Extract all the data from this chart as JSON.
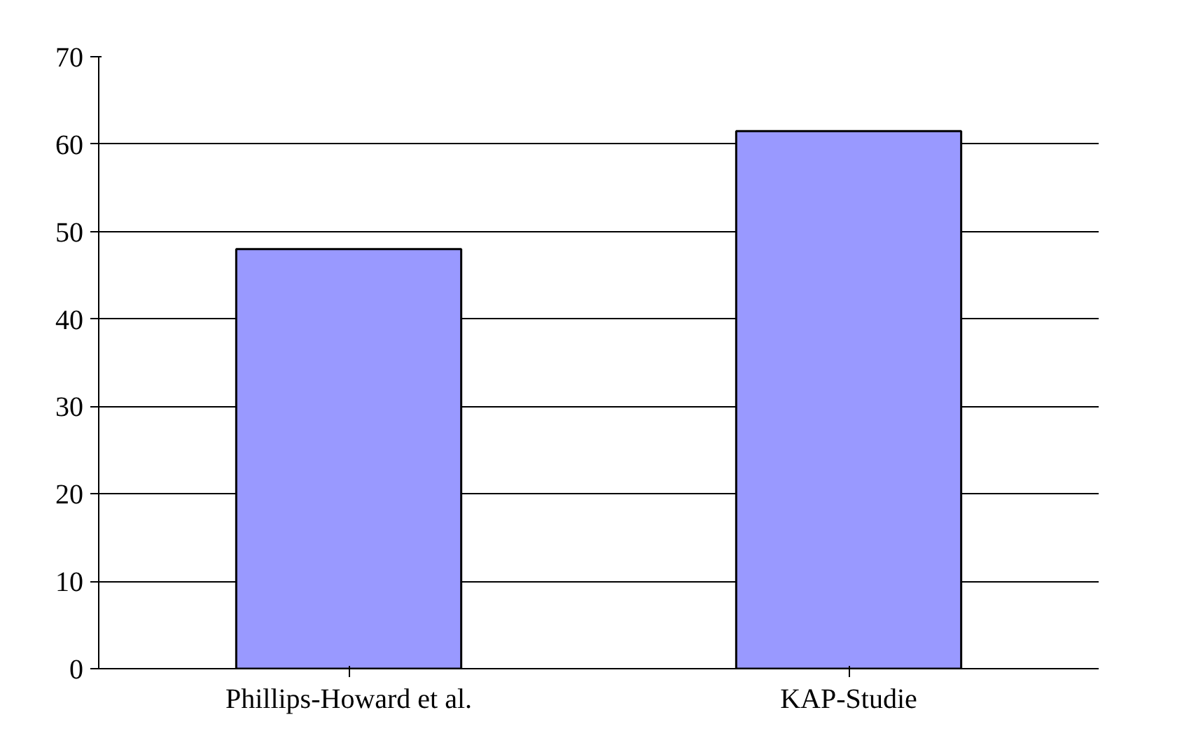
{
  "chart_data": {
    "type": "bar",
    "categories": [
      "Phillips-Howard et al.",
      "KAP-Studie"
    ],
    "values": [
      48,
      61.5
    ],
    "color": "#9999ff",
    "ylim": [
      0,
      70
    ],
    "yticks": [
      0,
      10,
      20,
      30,
      40,
      50,
      60,
      70
    ],
    "grid": "y"
  }
}
